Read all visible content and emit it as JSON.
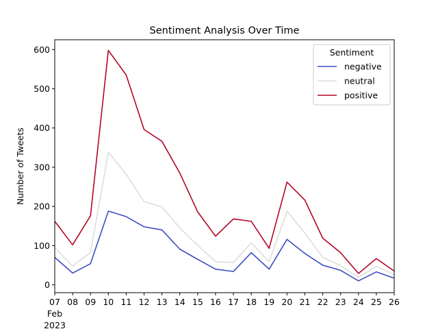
{
  "chart_data": {
    "type": "line",
    "title": "Sentiment Analysis Over Time",
    "xlabel": "",
    "ylabel": "Number of Tweets",
    "x": [
      "2023-02-07",
      "2023-02-08",
      "2023-02-09",
      "2023-02-10",
      "2023-02-11",
      "2023-02-12",
      "2023-02-13",
      "2023-02-14",
      "2023-02-15",
      "2023-02-16",
      "2023-02-17",
      "2023-02-18",
      "2023-02-19",
      "2023-02-20",
      "2023-02-21",
      "2023-02-22",
      "2023-02-23",
      "2023-02-24",
      "2023-02-25",
      "2023-02-26"
    ],
    "x_tick_labels": [
      "07",
      "08",
      "09",
      "10",
      "11",
      "12",
      "13",
      "14",
      "15",
      "16",
      "17",
      "18",
      "19",
      "20",
      "21",
      "22",
      "23",
      "24",
      "25",
      "26"
    ],
    "x_month_label": "Feb",
    "x_year_label": "2023",
    "xlim": [
      "2023-02-07",
      "2023-02-26"
    ],
    "ylim": [
      -20,
      625
    ],
    "y_ticks": [
      0,
      100,
      200,
      300,
      400,
      500,
      600
    ],
    "grid": false,
    "legend": {
      "title": "Sentiment",
      "position": "top-right"
    },
    "series": [
      {
        "name": "negative",
        "color": "#3b4cc0",
        "values": [
          70,
          30,
          54,
          188,
          174,
          148,
          140,
          91,
          65,
          40,
          34,
          82,
          40,
          116,
          80,
          50,
          37,
          10,
          33,
          17
        ]
      },
      {
        "name": "neutral",
        "color": "#dddddd",
        "values": [
          95,
          48,
          82,
          338,
          282,
          212,
          199,
          145,
          101,
          59,
          57,
          107,
          59,
          188,
          132,
          70,
          49,
          19,
          47,
          26
        ]
      },
      {
        "name": "positive",
        "color": "#b40426",
        "values": [
          162,
          102,
          176,
          598,
          535,
          396,
          366,
          285,
          186,
          124,
          168,
          162,
          93,
          262,
          216,
          119,
          82,
          29,
          67,
          35
        ]
      }
    ]
  }
}
